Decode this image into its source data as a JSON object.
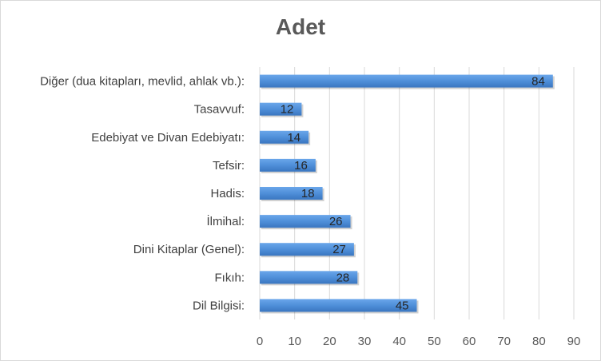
{
  "chart_data": {
    "type": "bar",
    "orientation": "horizontal",
    "title": "Adet",
    "xlabel": "",
    "ylabel": "",
    "categories": [
      "Diğer (dua kitapları, mevlid, ahlak vb.):",
      "Tasavvuf:",
      "Edebiyat ve Divan Edebiyatı:",
      "Tefsir:",
      "Hadis:",
      "İlmihal:",
      "Dini Kitaplar (Genel):",
      "Fıkıh:",
      "Dil Bilgisi:"
    ],
    "values": [
      84,
      12,
      14,
      16,
      18,
      26,
      27,
      28,
      45
    ],
    "xlim": [
      0,
      90
    ],
    "xticks": [
      0,
      10,
      20,
      30,
      40,
      50,
      60,
      70,
      80,
      90
    ],
    "grid": "vertical",
    "legend": "none",
    "data_labels": true,
    "bar_color": "#4f8fd9",
    "gridline_color": "#d9d9d9"
  }
}
